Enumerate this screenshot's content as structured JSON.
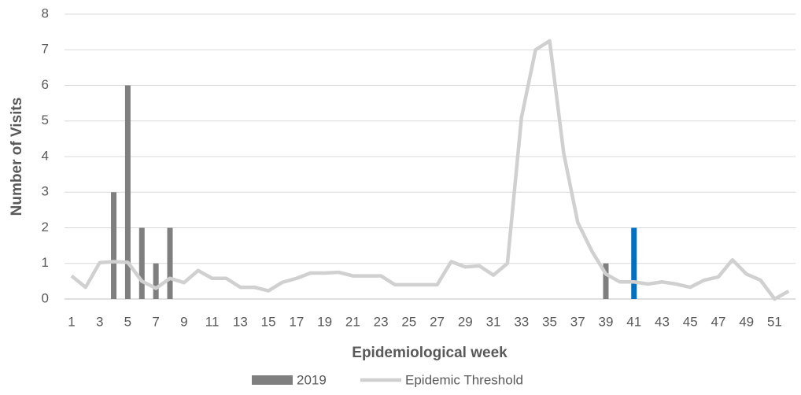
{
  "chart_data": {
    "type": "bar",
    "x_label": "Epidemiological week",
    "y_label": "Number of Visits",
    "categories": [
      1,
      null,
      3,
      null,
      5,
      null,
      7,
      null,
      9,
      null,
      11,
      null,
      13,
      null,
      15,
      null,
      17,
      null,
      19,
      null,
      21,
      null,
      23,
      null,
      25,
      null,
      27,
      null,
      29,
      null,
      31,
      null,
      33,
      null,
      35,
      null,
      37,
      null,
      39,
      null,
      41,
      null,
      43,
      null,
      45,
      null,
      47,
      null,
      49,
      null,
      51,
      null
    ],
    "series": [
      {
        "name": "2019",
        "type": "bar",
        "color": "#7f7f7f",
        "values": [
          null,
          null,
          null,
          3,
          6,
          2,
          1,
          2,
          null,
          null,
          null,
          null,
          null,
          null,
          null,
          null,
          null,
          null,
          null,
          null,
          null,
          null,
          null,
          null,
          null,
          null,
          null,
          null,
          null,
          null,
          null,
          null,
          null,
          null,
          null,
          null,
          null,
          null,
          1,
          null,
          2,
          null,
          null,
          null,
          null,
          null,
          null,
          null,
          null,
          null,
          null,
          null
        ],
        "point_colors": [
          null,
          null,
          null,
          null,
          null,
          null,
          null,
          null,
          null,
          null,
          null,
          null,
          null,
          null,
          null,
          null,
          null,
          null,
          null,
          null,
          null,
          null,
          null,
          null,
          null,
          null,
          null,
          null,
          null,
          null,
          null,
          null,
          null,
          null,
          null,
          null,
          null,
          null,
          null,
          null,
          "#0070c0",
          null,
          null,
          null,
          null,
          null,
          null,
          null,
          null,
          null,
          null,
          null
        ]
      },
      {
        "name": "Epidemic Threshold",
        "type": "line",
        "color": "#d0d0d0",
        "values": [
          0.65,
          0.33,
          1.02,
          1.05,
          1.03,
          0.5,
          0.3,
          0.58,
          0.46,
          0.8,
          0.58,
          0.58,
          0.33,
          0.33,
          0.23,
          0.47,
          0.58,
          0.73,
          0.73,
          0.75,
          0.65,
          0.65,
          0.65,
          0.4,
          0.4,
          0.4,
          0.4,
          1.05,
          0.9,
          0.93,
          0.67,
          1.0,
          5.1,
          7.0,
          7.25,
          4.1,
          2.15,
          1.35,
          0.7,
          0.48,
          0.48,
          0.42,
          0.48,
          0.42,
          0.33,
          0.53,
          0.62,
          1.1,
          0.7,
          0.53,
          0.0,
          0.22
        ]
      }
    ],
    "ylim": [
      0,
      8
    ],
    "yticks": [
      0,
      1,
      2,
      3,
      4,
      5,
      6,
      7,
      8
    ],
    "grid": true,
    "legend": "bottom"
  }
}
